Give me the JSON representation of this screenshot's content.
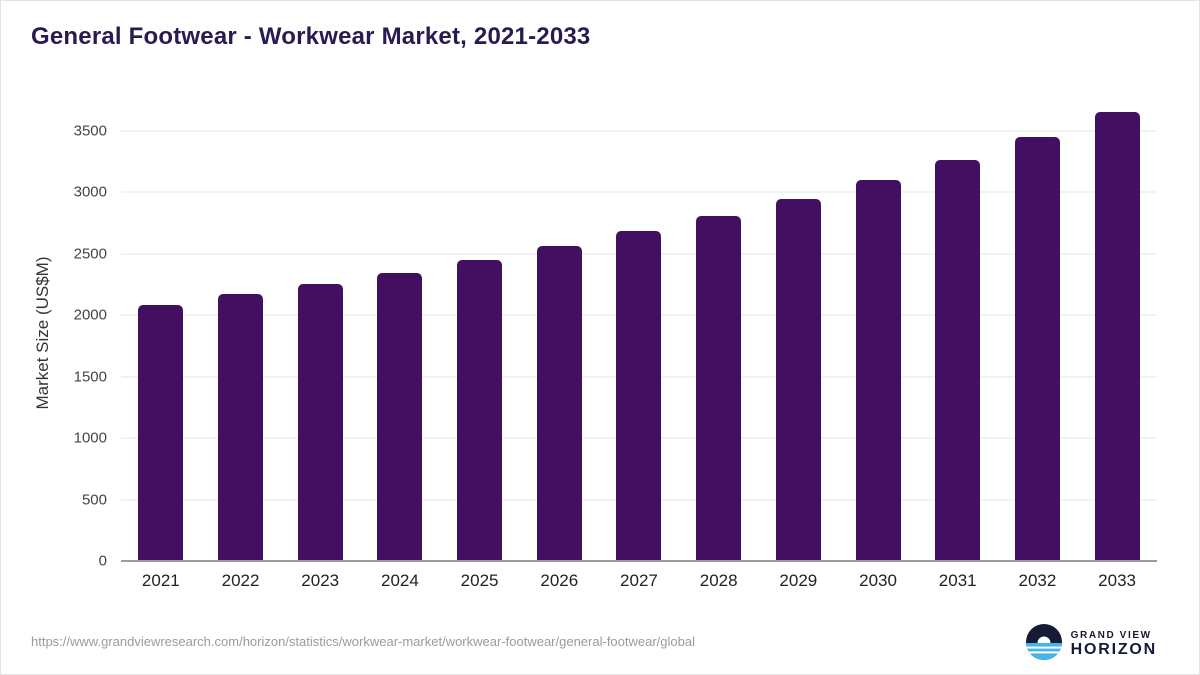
{
  "chart_data": {
    "type": "bar",
    "title": "General Footwear - Workwear Market, 2021-2033",
    "xlabel": "",
    "ylabel": "Market Size (US$M)",
    "categories": [
      "2021",
      "2022",
      "2023",
      "2024",
      "2025",
      "2026",
      "2027",
      "2028",
      "2029",
      "2030",
      "2031",
      "2032",
      "2033"
    ],
    "values": [
      2080,
      2170,
      2250,
      2345,
      2450,
      2560,
      2680,
      2805,
      2945,
      3100,
      3265,
      3445,
      3650
    ],
    "yticks": [
      0,
      500,
      1000,
      1500,
      2000,
      2500,
      3000,
      3500
    ],
    "ylim": [
      0,
      3700
    ],
    "grid": true,
    "legend": "none",
    "bar_color": "#431061"
  },
  "footer": {
    "source_url": "https://www.grandviewresearch.com/horizon/statistics/workwear-market/workwear-footwear/general-footwear/global",
    "logo": {
      "top": "GRAND VIEW",
      "bottom": "HORIZON"
    }
  },
  "colors": {
    "title": "#2a1a52",
    "bar": "#431061",
    "gridline": "#e4e4e4",
    "axis_line": "#9b9b9b",
    "logo_navy": "#151b34",
    "logo_blue": "#45b5e8"
  }
}
